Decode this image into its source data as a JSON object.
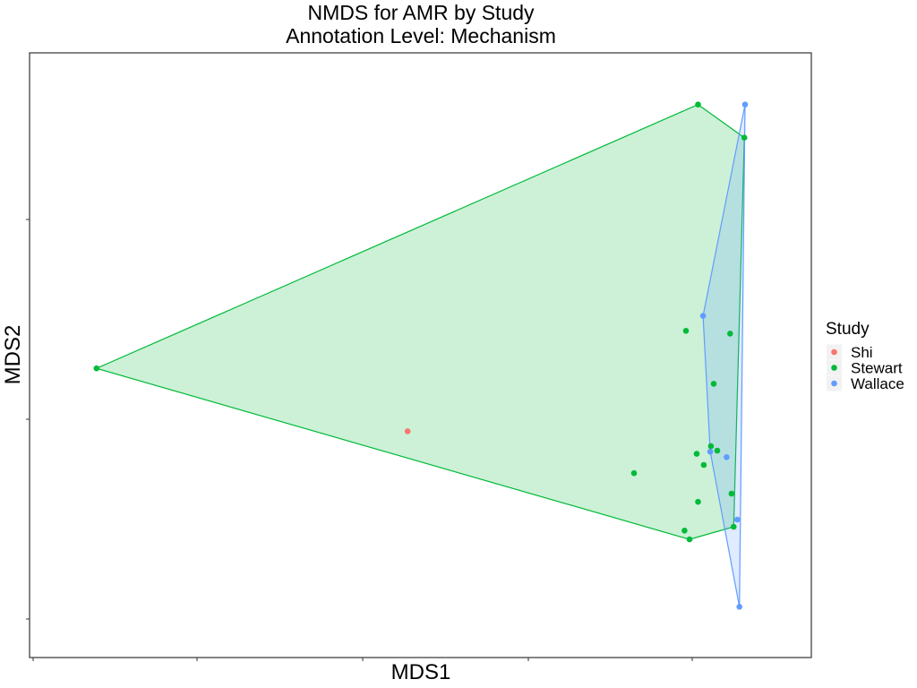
{
  "chart_data": {
    "type": "scatter",
    "title": "NMDS for AMR by Study",
    "subtitle": "Annotation Level: Mechanism",
    "xlabel": "MDS1",
    "ylabel": "MDS2",
    "xlim": [
      0,
      100
    ],
    "ylim": [
      0,
      100
    ],
    "grid": false,
    "hulls": true,
    "legend": {
      "title": "Study",
      "position": "right",
      "entries": [
        "Shi",
        "Stewart",
        "Wallace"
      ]
    },
    "colors": {
      "Shi": "#F8766D",
      "Stewart": "#00BA38",
      "Wallace": "#619CFF"
    },
    "series": [
      {
        "name": "Shi",
        "points": [
          [
            48.2,
            36.3
          ]
        ]
      },
      {
        "name": "Stewart",
        "points": [
          [
            4.5,
            47.7
          ],
          [
            89.0,
            95.5
          ],
          [
            95.5,
            89.5
          ],
          [
            87.8,
            16.7
          ],
          [
            94.0,
            19.0
          ],
          [
            87.3,
            54.5
          ],
          [
            93.5,
            54.0
          ],
          [
            91.2,
            44.9
          ],
          [
            90.8,
            33.6
          ],
          [
            91.7,
            32.8
          ],
          [
            88.8,
            32.2
          ],
          [
            89.8,
            30.2
          ],
          [
            80.0,
            28.7
          ],
          [
            93.7,
            25.0
          ],
          [
            89.0,
            23.5
          ],
          [
            87.1,
            18.3
          ]
        ]
      },
      {
        "name": "Wallace",
        "points": [
          [
            95.6,
            95.5
          ],
          [
            89.7,
            57.2
          ],
          [
            90.7,
            32.6
          ],
          [
            93.0,
            31.6
          ],
          [
            94.5,
            20.3
          ],
          [
            94.8,
            4.5
          ]
        ]
      }
    ]
  }
}
